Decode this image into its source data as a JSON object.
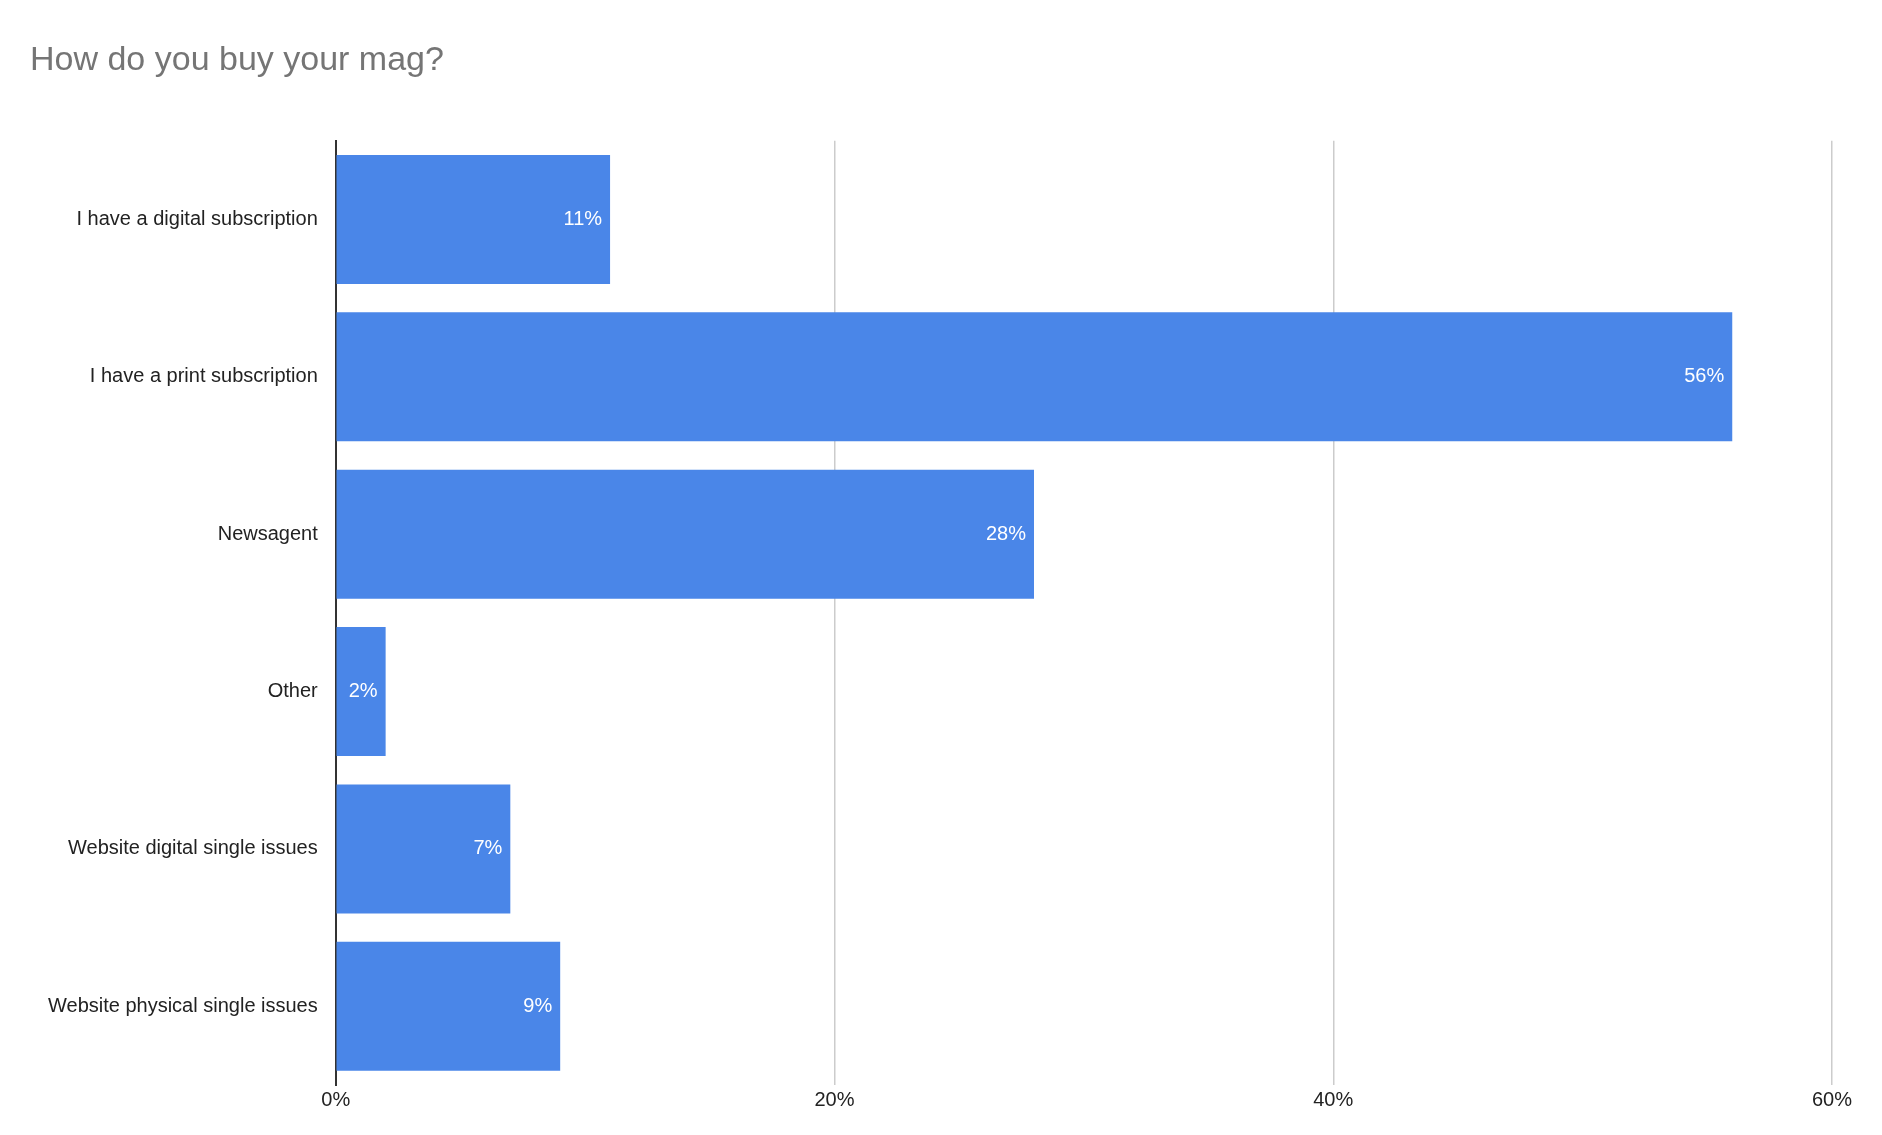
{
  "chart_data": {
    "type": "bar",
    "orientation": "horizontal",
    "title": "How do you buy your mag?",
    "categories": [
      "I have a digital subscription",
      "I have a print subscription",
      "Newsagent",
      "Other",
      "Website digital single issues",
      "Website physical single issues"
    ],
    "values": [
      11,
      56,
      28,
      2,
      7,
      9
    ],
    "value_labels": [
      "11%",
      "56%",
      "28%",
      "2%",
      "7%",
      "9%"
    ],
    "color": "#4a86e8",
    "xlim": [
      0,
      60
    ],
    "xticks": [
      {
        "value": 0,
        "label": "0%"
      },
      {
        "value": 20,
        "label": "20%"
      },
      {
        "value": 40,
        "label": "40%"
      },
      {
        "value": 60,
        "label": "60%"
      }
    ],
    "grid": "x",
    "legend": false
  }
}
